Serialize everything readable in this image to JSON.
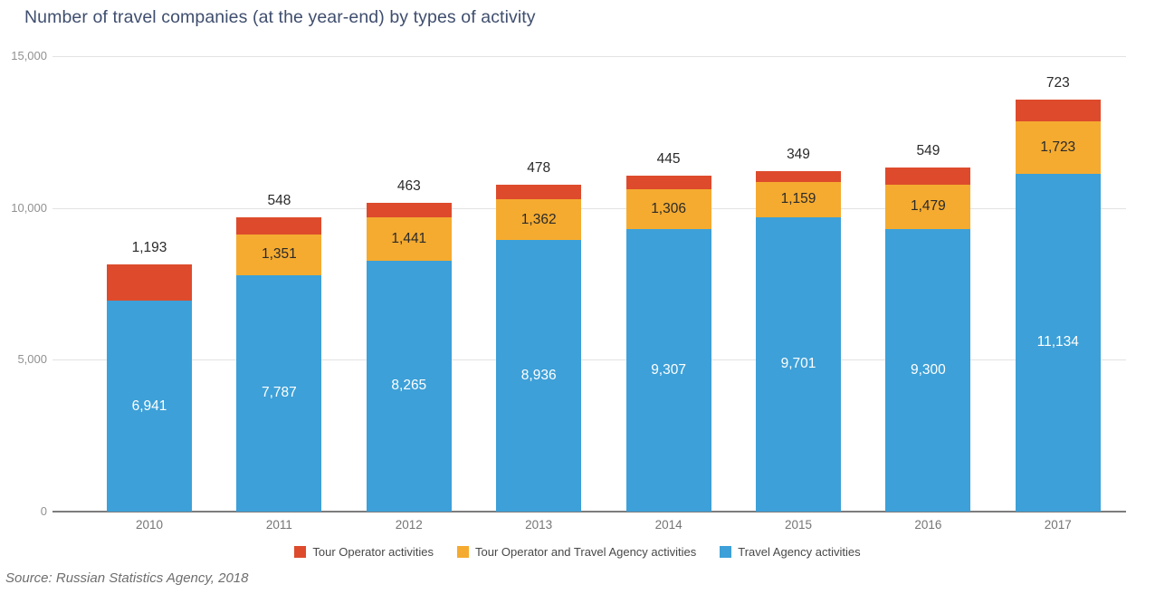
{
  "title": "Number of travel companies (at the year-end) by types of activity",
  "source_note": "Source: Russian Statistics Agency, 2018",
  "chart_data": {
    "type": "bar",
    "stacked": true,
    "title": "Number of travel companies (at the year-end) by types of activity",
    "categories": [
      "2010",
      "2011",
      "2012",
      "2013",
      "2014",
      "2015",
      "2016",
      "2017"
    ],
    "series": [
      {
        "name": "Travel Agency activities",
        "color": "#3da0d8",
        "label_color": "#ffffff",
        "label_weight": "500",
        "label_position": "inside",
        "values": [
          6941,
          7787,
          8265,
          8936,
          9307,
          9701,
          9300,
          11134
        ]
      },
      {
        "name": "Tour Operator and Travel Agency activities",
        "color": "#f5ab30",
        "label_color": "#2a2a2a",
        "label_weight": "400",
        "label_position": "inside",
        "values": [
          0,
          1351,
          1441,
          1362,
          1306,
          1159,
          1479,
          1723
        ]
      },
      {
        "name": "Tour Operator activities",
        "color": "#dd4b2c",
        "label_color": "#2a2a2a",
        "label_weight": "400",
        "label_position": "above",
        "values": [
          1193,
          548,
          463,
          478,
          445,
          349,
          549,
          723
        ]
      }
    ],
    "ylim": [
      0,
      15000
    ],
    "yticks": [
      {
        "value": 15000,
        "label": "15,000"
      },
      {
        "value": 10000,
        "label": "10,000"
      },
      {
        "value": 5000,
        "label": "5,000"
      },
      {
        "value": 0,
        "label": "0"
      }
    ],
    "grid": true,
    "legend_position": "bottom",
    "legend_order": [
      "Tour Operator activities",
      "Tour Operator and Travel Agency activities",
      "Travel Agency activities"
    ]
  }
}
